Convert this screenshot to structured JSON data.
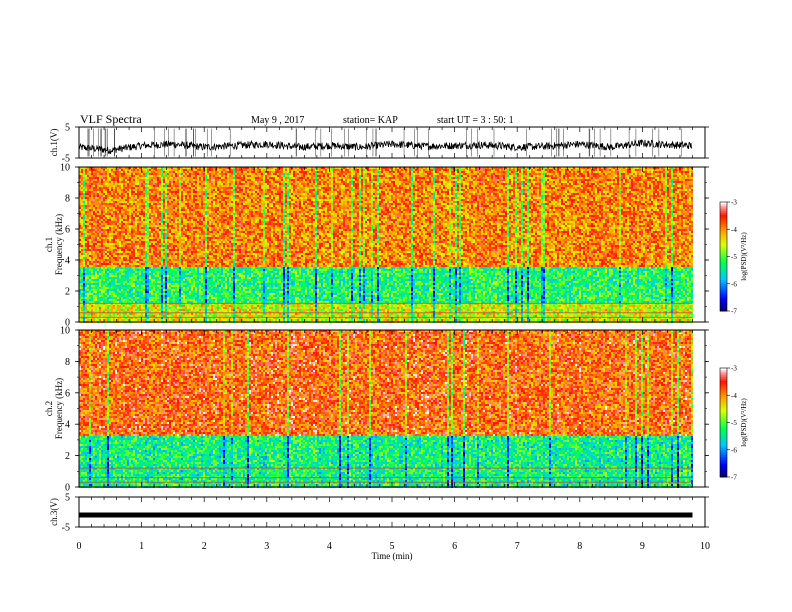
{
  "header": {
    "title": "VLF Spectra",
    "date": "May 9 , 2017",
    "station": "station= KAP",
    "start": "start UT = 3 : 50: 1"
  },
  "chart_data": [
    {
      "type": "line",
      "name": "ch1-voltage",
      "ylabel": "ch.1(V)",
      "ylim": [
        -5,
        5
      ],
      "yticks": [
        "5",
        "-5"
      ],
      "x": [
        0,
        0.5,
        1,
        1.5,
        2,
        2.5,
        3,
        3.5,
        4,
        4.5,
        5,
        5.5,
        6,
        6.5,
        7,
        7.5,
        8,
        8.5,
        9,
        9.5,
        9.8
      ],
      "y": [
        -1.5,
        -2.5,
        -1,
        -0.5,
        -1.5,
        -1,
        -0.5,
        -1.5,
        -1,
        -1.5,
        -0.5,
        -1.2,
        -1,
        -0.8,
        -1.5,
        -1.2,
        -0.5,
        -1.5,
        -0.2,
        -0.8,
        -1
      ]
    },
    {
      "type": "heatmap",
      "name": "ch1-spectrogram",
      "ylabel": "ch.1\nFrequency (kHz)",
      "ylim": [
        0,
        10
      ],
      "yticks": [
        "0",
        "2",
        "4",
        "6",
        "8",
        "10"
      ],
      "colorbar": {
        "label": "log(PSD)(V²/Hz)",
        "range": [
          -7,
          -3
        ],
        "ticks": [
          "-3",
          "-4",
          "-5",
          "-6",
          "-7"
        ]
      },
      "bands": [
        {
          "from": 0,
          "to": 1.2,
          "level": -4.5
        },
        {
          "from": 1.2,
          "to": 3.5,
          "level": -5.2
        },
        {
          "from": 3.5,
          "to": 10,
          "level": -3.9
        }
      ]
    },
    {
      "type": "heatmap",
      "name": "ch2-spectrogram",
      "ylabel": "ch.2\nFrequency (kHz)",
      "ylim": [
        0,
        10
      ],
      "yticks": [
        "0",
        "2",
        "4",
        "6",
        "8",
        "10"
      ],
      "colorbar": {
        "label": "log(PSD)(V²/Hz)",
        "range": [
          -7,
          -3
        ],
        "ticks": [
          "-3",
          "-4",
          "-5",
          "-6",
          "-7"
        ]
      },
      "bands": [
        {
          "from": 0,
          "to": 3.2,
          "level": -5.3
        },
        {
          "from": 3.2,
          "to": 10,
          "level": -3.7
        }
      ]
    },
    {
      "type": "line",
      "name": "ch3-voltage",
      "ylabel": "ch.3(V)",
      "ylim": [
        -5,
        5
      ],
      "yticks": [
        "5",
        "-5"
      ],
      "x": [
        0,
        9.8
      ],
      "y": [
        -1,
        -1
      ]
    }
  ],
  "xaxis": {
    "label": "Time (min)",
    "range": [
      0,
      10
    ],
    "ticks": [
      "0",
      "1",
      "2",
      "3",
      "4",
      "5",
      "6",
      "7",
      "8",
      "9",
      "10"
    ]
  }
}
